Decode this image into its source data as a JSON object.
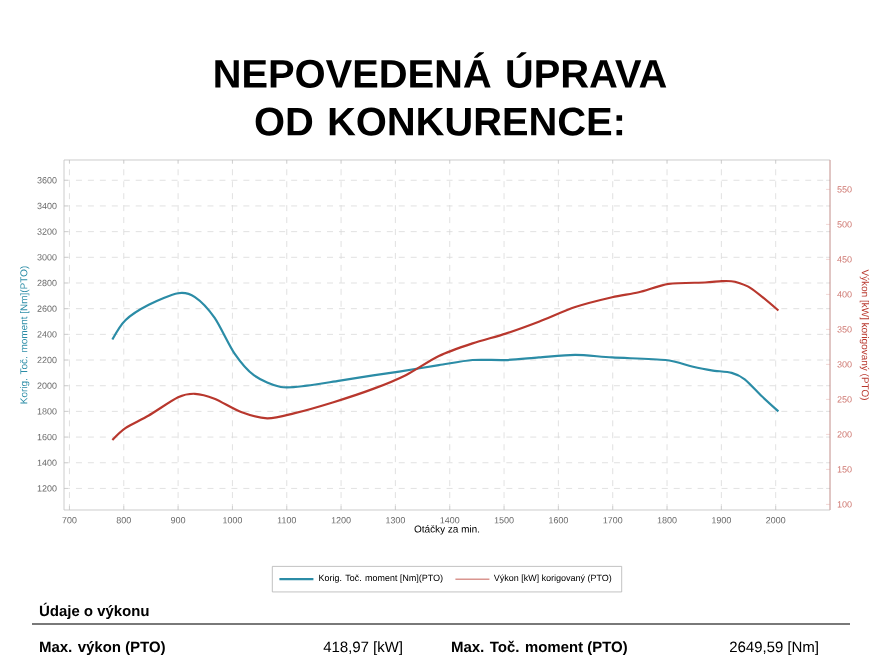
{
  "chart_data": {
    "type": "line",
    "title": "NEPOVEDENÁ ÚPRAVA OD KONKURENCE:",
    "xlabel": "Otáčky za min.",
    "ylabel": "Korig. Toč. moment [Nm](PTO)",
    "y2label": "Výkon [kW] korigovaný (PTO)",
    "xlim": [
      690,
      2100
    ],
    "ylim": [
      1032,
      3758
    ],
    "y2lim": [
      92,
      592
    ],
    "xticks": [
      700,
      800,
      900,
      1000,
      1100,
      1200,
      1300,
      1400,
      1500,
      1600,
      1700,
      1800,
      1900,
      2000
    ],
    "yticks": [
      1200,
      1400,
      1600,
      1800,
      2000,
      2200,
      2400,
      2600,
      2800,
      3000,
      3200,
      3400,
      3600
    ],
    "y2ticks": [
      100,
      150,
      200,
      250,
      300,
      350,
      400,
      450,
      500,
      550
    ],
    "grid": true,
    "legend": "bottom",
    "line_style": "solid",
    "marker": "none",
    "series": [
      {
        "name": "Korig. Toč. moment [Nm](PTO)",
        "color": "#2b8ca6",
        "x": [
          779,
          803,
          846,
          900,
          931,
          967,
          1004,
          1040,
          1089,
          1137,
          1198,
          1259,
          1307,
          1380,
          1442,
          1503,
          1564,
          1631,
          1699,
          1797,
          1846,
          1882,
          1919,
          1943,
          1974,
          2005
        ],
        "values": [
          2360,
          2510,
          2630,
          2720,
          2690,
          2530,
          2250,
          2080,
          1990,
          2000,
          2040,
          2080,
          2110,
          2160,
          2200,
          2200,
          2220,
          2240,
          2220,
          2200,
          2150,
          2120,
          2100,
          2050,
          1920,
          1800
        ]
      },
      {
        "name": "Výkon [kW] korigovaný (PTO)",
        "color": "#b8372d",
        "axis": "y2",
        "x": [
          779,
          803,
          846,
          900,
          931,
          967,
          1016,
          1064,
          1113,
          1186,
          1259,
          1320,
          1380,
          1442,
          1503,
          1564,
          1631,
          1699,
          1748,
          1803,
          1870,
          1901,
          1925,
          1956,
          2005
        ],
        "values": [
          192,
          209,
          227,
          253,
          258,
          251,
          232,
          223,
          230,
          246,
          265,
          285,
          312,
          330,
          344,
          361,
          382,
          396,
          403,
          415,
          417,
          419,
          418,
          408,
          377
        ]
      }
    ],
    "annotations": [
      "Údaje o výkonu",
      "Max. výkon (PTO)",
      "418,97 [kW]",
      "Max. Toč. moment (PTO)",
      "2649,59 [Nm]"
    ]
  }
}
